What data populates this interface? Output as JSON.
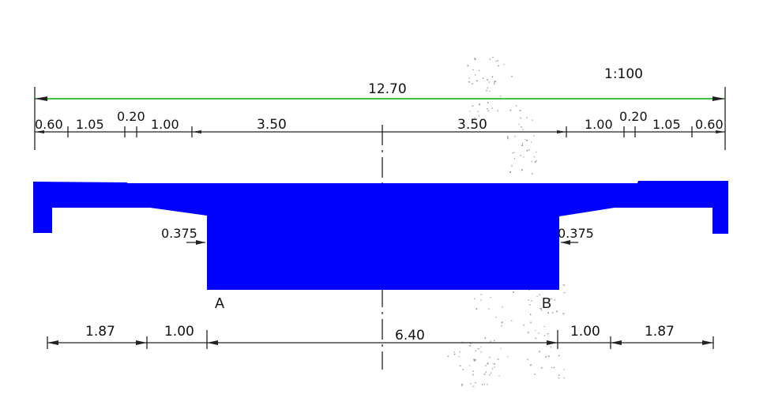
{
  "scale": "1:100",
  "overall_width": "12.70",
  "top_segments": [
    "0.60",
    "1.05",
    "0.20",
    "1.00",
    "3.50",
    "3.50",
    "1.00",
    "0.20",
    "1.05",
    "0.60"
  ],
  "bottom_segments": [
    "1.87",
    "1.00",
    "6.40",
    "1.00",
    "1.87"
  ],
  "offset_left": "0.375",
  "offset_right": "0.375",
  "point_a": "A",
  "point_b": "B",
  "colors": {
    "section_fill": "#0000ff",
    "overall_dimension_line": "#00b000",
    "linework": "#222222"
  }
}
